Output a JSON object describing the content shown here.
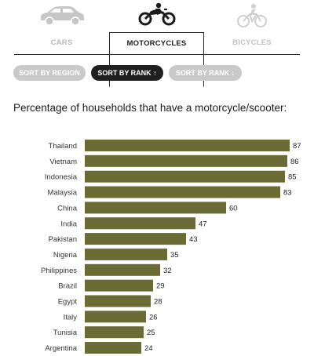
{
  "tabs": {
    "cars": {
      "label": "CARS",
      "icon": "car-icon"
    },
    "motorcycles": {
      "label": "MOTORCYCLES",
      "icon": "motorcycle-icon"
    },
    "bicycles": {
      "label": "BICYCLES",
      "icon": "bicycle-icon"
    },
    "selected": "motorcycles"
  },
  "sort": {
    "region_label": "SORT BY REGION",
    "rank_up_label": "SORT BY RANK ↑",
    "rank_down_label": "SORT BY RANK ↓",
    "selected": "rank_up"
  },
  "colors": {
    "bar": "#6b6b35",
    "selected_pill": "#1f1f1f",
    "pill": "#c9c9c9"
  },
  "chart_data": {
    "type": "bar",
    "orientation": "horizontal",
    "title": "Percentage of households that have a motorcycle/scooter:",
    "categories": [
      "Thailand",
      "Vietnam",
      "Indonesia",
      "Malaysia",
      "China",
      "India",
      "Pakistan",
      "Nigeria",
      "Philippines",
      "Brazil",
      "Egypt",
      "Italy",
      "Tunisia",
      "Argentina"
    ],
    "values": [
      87,
      86,
      85,
      83,
      60,
      47,
      43,
      35,
      32,
      29,
      28,
      26,
      25,
      24
    ],
    "xlim": [
      0,
      87
    ],
    "grid": false,
    "data_labels": true
  }
}
